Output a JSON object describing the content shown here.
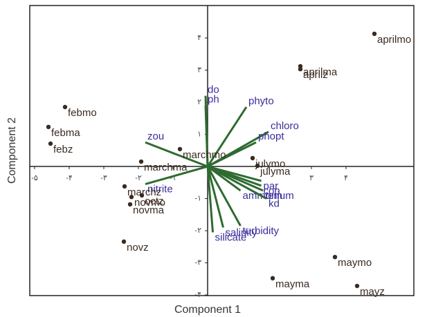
{
  "chart_data": {
    "type": "biplot",
    "xlabel": "Component 1",
    "ylabel": "Component 2",
    "xlim": [
      -5.14,
      5.96
    ],
    "ylim": [
      -4.02,
      5.01
    ],
    "xticks": [
      {
        "value": -5,
        "label": "-۵"
      },
      {
        "value": -4,
        "label": "-۴"
      },
      {
        "value": -3,
        "label": "-۳"
      },
      {
        "value": -2,
        "label": "-۲"
      },
      {
        "value": -1,
        "label": "-۱"
      },
      {
        "value": 3,
        "label": "۳"
      },
      {
        "value": 4,
        "label": "۴"
      }
    ],
    "yticks": [
      {
        "value": 4,
        "label": "۴"
      },
      {
        "value": 3,
        "label": "۳"
      },
      {
        "value": 2,
        "label": "۲"
      },
      {
        "value": 1,
        "label": "۱"
      },
      {
        "value": -1,
        "label": "-۱"
      },
      {
        "value": -2,
        "label": "-۲"
      },
      {
        "value": -3,
        "label": "-۳"
      },
      {
        "value": -4,
        "label": "-۴"
      }
    ],
    "points": {
      "color": "#3a2a20",
      "labels": [
        "aprilmo",
        "aprilma",
        "aprilz",
        "febmo",
        "febma",
        "febz",
        "marchmo",
        "marchma",
        "julymo",
        "julyma",
        "marchz",
        "octz",
        "novmo",
        "novma",
        "novz",
        "mayma",
        "maymo",
        "mayz"
      ],
      "x": [
        4.82,
        2.68,
        2.68,
        -4.12,
        -4.6,
        -4.54,
        -0.8,
        -1.92,
        1.3,
        1.44,
        -2.4,
        -1.9,
        -2.2,
        -2.24,
        -2.42,
        1.88,
        3.68,
        4.32
      ],
      "y": [
        4.13,
        3.12,
        3.03,
        1.85,
        1.23,
        0.71,
        0.54,
        0.15,
        0.26,
        0.02,
        -0.62,
        -0.9,
        -0.95,
        -1.18,
        -2.34,
        -3.48,
        -2.82,
        -3.72
      ]
    },
    "vectors": {
      "color": "#2e6b30",
      "label_color": "#3a2d9a",
      "labels": [
        "do",
        "ph",
        "phyto",
        "chloro",
        "phopt",
        "zou",
        "nitrite",
        "ammonium",
        "par",
        "con",
        "tem",
        "kd",
        "salinity",
        "turbidity",
        "silicate"
      ],
      "x": [
        -0.06,
        -0.06,
        1.12,
        1.76,
        1.4,
        -1.8,
        -1.8,
        0.95,
        1.55,
        1.55,
        1.6,
        1.7,
        0.45,
        0.95,
        0.15
      ],
      "y": [
        2.2,
        1.9,
        1.85,
        1.08,
        0.75,
        0.75,
        -0.55,
        -0.75,
        -0.45,
        -0.6,
        -0.75,
        -1.0,
        -1.9,
        -1.85,
        -2.05
      ]
    }
  }
}
